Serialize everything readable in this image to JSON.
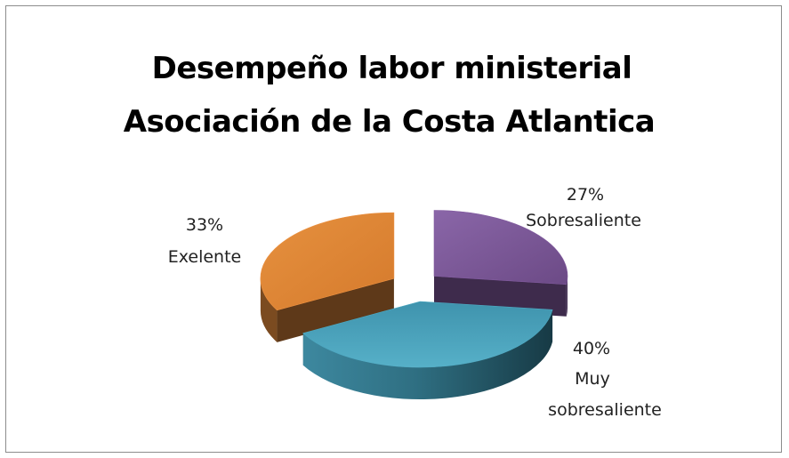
{
  "chart_data": {
    "type": "pie",
    "style": "3d-exploded",
    "title_lines": [
      "Desempeño labor ministerial",
      "Asociación de la Costa Atlantica"
    ],
    "slices": [
      {
        "label": "Sobresaliente",
        "percent_text": "27%",
        "value": 27,
        "color": "#7b5597"
      },
      {
        "label_lines": [
          "Muy",
          "sobresaliente"
        ],
        "percent_text": "40%",
        "value": 40,
        "color": "#4aa1b9"
      },
      {
        "label": "Exelente",
        "percent_text": "33%",
        "value": 33,
        "color": "#e0883b"
      }
    ],
    "legend": "none",
    "data_labels": "outside"
  }
}
